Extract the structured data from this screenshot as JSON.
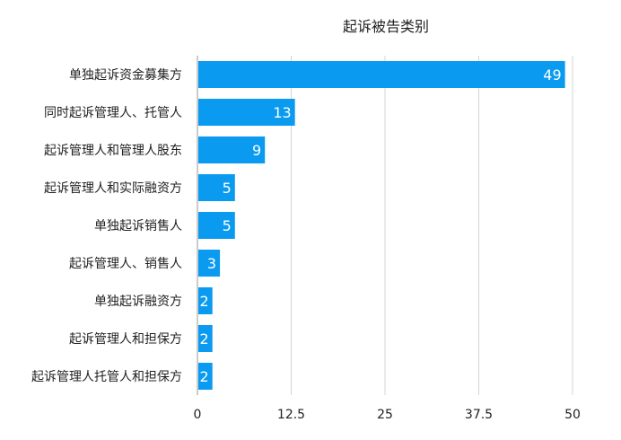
{
  "chart_data": {
    "type": "bar",
    "orientation": "horizontal",
    "title": "起诉被告类别",
    "categories": [
      "单独起诉资金募集方",
      "同时起诉管理人、托管人",
      "起诉管理人和管理人股东",
      "起诉管理人和实际融资方",
      "单独起诉销售人",
      "起诉管理人、销售人",
      "单独起诉融资方",
      "起诉管理人和担保方",
      "起诉管理人托管人和担保方"
    ],
    "values": [
      49,
      13,
      9,
      5,
      5,
      3,
      2,
      2,
      2
    ],
    "xlim": [
      0,
      50
    ],
    "xticks": [
      "0",
      "12.5",
      "25",
      "37.5",
      "50"
    ],
    "grid": true,
    "bar_color": "#0a9bf0",
    "label_color": "#ffffff"
  }
}
